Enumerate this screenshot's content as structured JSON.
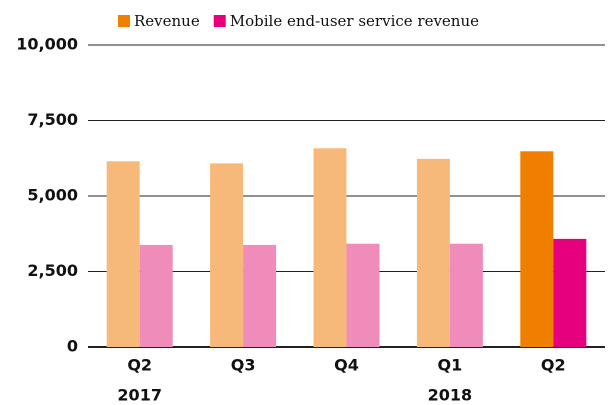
{
  "chart_data": {
    "type": "bar",
    "categories": [
      "Q2",
      "Q3",
      "Q4",
      "Q1",
      "Q2"
    ],
    "years": [
      "2017",
      null,
      null,
      "2018",
      null
    ],
    "series": [
      {
        "name": "Revenue",
        "color": "#f07f00",
        "colors": [
          "#f7b97a",
          "#f7b97a",
          "#f7b97a",
          "#f7b97a",
          "#f07f00"
        ],
        "values": [
          6150,
          6080,
          6580,
          6230,
          6480
        ]
      },
      {
        "name": "Mobile end-user service revenue",
        "color": "#e6007e",
        "colors": [
          "#f08cba",
          "#f08cba",
          "#f08cba",
          "#f08cba",
          "#e6007e"
        ],
        "values": [
          3380,
          3380,
          3420,
          3420,
          3580
        ]
      }
    ],
    "ylim": [
      0,
      10000
    ],
    "yticks": [
      0,
      {
        "value": 2500,
        "label": "2,500"
      },
      {
        "value": 5000,
        "label": "5,000"
      },
      {
        "value": 7500,
        "label": "7,500"
      },
      {
        "value": 10000,
        "label": "10,000"
      }
    ],
    "grid": true,
    "legend": "top"
  }
}
